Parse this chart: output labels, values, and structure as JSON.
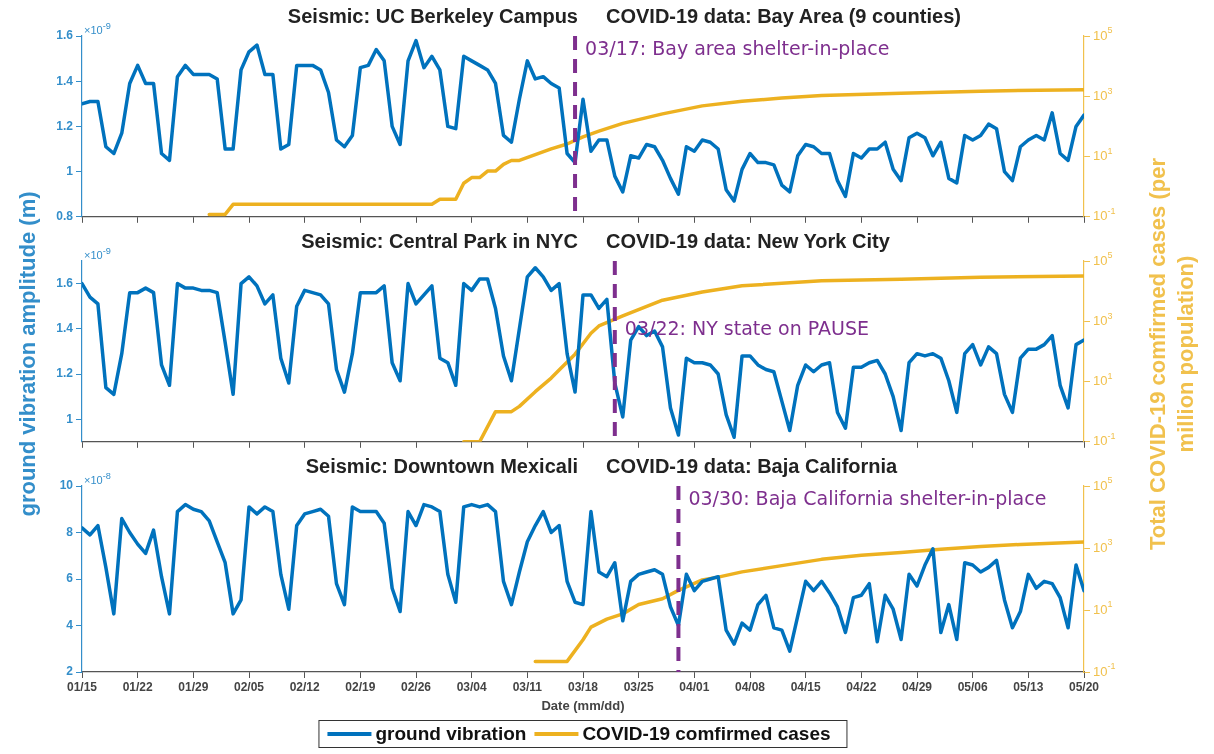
{
  "chart_data": [
    {
      "type": "line",
      "title": "Seismic: UC Berkeley Campus",
      "subtitle": "COVID-19 data: Bay Area (9 counties)",
      "annotations": [
        "×10$^{-9}$"
      ],
      "tick_labels": "y",
      "log": "y2",
      "x": [
        "--01-15",
        "--01-16",
        "--01-17",
        "--01-18",
        "--01-19",
        "--01-20",
        "--01-21",
        "--01-22",
        "--01-23",
        "--01-24",
        "--01-25",
        "--01-26",
        "--01-27",
        "--01-28",
        "--01-29",
        "--01-30",
        "--01-31",
        "--02-01",
        "--02-02",
        "--02-03",
        "--02-04",
        "--02-05",
        "--02-06",
        "--02-07",
        "--02-08",
        "--02-09",
        "--02-10",
        "--02-11",
        "--02-12",
        "--02-13",
        "--02-14",
        "--02-15",
        "--02-16",
        "--02-17",
        "--02-18",
        "--02-19",
        "--02-20",
        "--02-21",
        "--02-22",
        "--02-23",
        "--02-24",
        "--02-25",
        "--02-26",
        "--02-27",
        "--02-28",
        "--02-29",
        "--03-01",
        "--03-02",
        "--03-03",
        "--03-04",
        "--03-05",
        "--03-06",
        "--03-07",
        "--03-08",
        "--03-09",
        "--03-10",
        "--03-11",
        "--03-12",
        "--03-13",
        "--03-14",
        "--03-15",
        "--03-16",
        "--03-17",
        "--03-18",
        "--03-19",
        "--03-20",
        "--03-21",
        "--03-22",
        "--03-23",
        "--03-24",
        "--03-25",
        "--03-26",
        "--03-27",
        "--03-28",
        "--03-29",
        "--03-30",
        "--03-31",
        "--04-01",
        "--04-02",
        "--04-03",
        "--04-04",
        "--04-05",
        "--04-06",
        "--04-07",
        "--04-08",
        "--04-09",
        "--04-10",
        "--04-11",
        "--04-12",
        "--04-13",
        "--04-14",
        "--04-15",
        "--04-16",
        "--04-17",
        "--04-18",
        "--04-19",
        "--04-20",
        "--04-21",
        "--04-22",
        "--04-23",
        "--04-24",
        "--04-25",
        "--04-26",
        "--04-27",
        "--04-28",
        "--04-29",
        "--04-30",
        "--05-01",
        "--05-02",
        "--05-03",
        "--05-04",
        "--05-05",
        "--05-06",
        "--05-07",
        "--05-08",
        "--05-09",
        "--05-10",
        "--05-11",
        "--05-12",
        "--05-13",
        "--05-14",
        "--05-15",
        "--05-16",
        "--05-17",
        "--05-18",
        "--05-19",
        "--05-20"
      ],
      "xlim": [
        "--01-15",
        "--05-20"
      ],
      "xticks": [
        {
          "value": "--01-15",
          "label": null
        },
        {
          "value": "--01-22",
          "label": null
        },
        {
          "value": "--01-29",
          "label": null
        },
        {
          "value": "--02-05",
          "label": null
        },
        {
          "value": "--02-12",
          "label": null
        },
        {
          "value": "--02-19",
          "label": null
        },
        {
          "value": "--02-26",
          "label": null
        },
        {
          "value": "--03-04",
          "label": null
        },
        {
          "value": "--03-11",
          "label": null
        },
        {
          "value": "--03-18",
          "label": null
        },
        {
          "value": "--03-25",
          "label": null
        },
        {
          "value": "--04-01",
          "label": null
        },
        {
          "value": "--04-08",
          "label": null
        },
        {
          "value": "--04-15",
          "label": null
        },
        {
          "value": "--04-22",
          "label": null
        },
        {
          "value": "--04-29",
          "label": null
        },
        {
          "value": "--05-06",
          "label": null
        },
        {
          "value": "--05-13",
          "label": null
        },
        {
          "value": "--05-20",
          "label": null
        }
      ],
      "ylim": [
        0.8,
        1.6
      ],
      "yticks": [
        0.8,
        1,
        1.2,
        1.4,
        1.6
      ],
      "y2lim": [
        0.1,
        100000
      ],
      "y2ticks": [
        {
          "value": 0.1,
          "label": "10$^{-1}$"
        },
        {
          "value": 10,
          "label": "10$^{1}$"
        },
        {
          "value": 1000,
          "label": "10$^{3}$"
        },
        {
          "value": 100000,
          "label": "10$^{5}$"
        }
      ],
      "ref_lines": [
        {
          "axis": "x",
          "value": "--03-17",
          "label": "03/17: Bay area shelter-in-place",
          "color": "#7e2f8e",
          "line_style": "dashed"
        }
      ],
      "series": [
        {
          "color": "#0072bd",
          "values": [
            1.3,
            1.31,
            1.31,
            1.11,
            1.08,
            1.17,
            1.39,
            1.47,
            1.39,
            1.39,
            1.08,
            1.05,
            1.42,
            1.47,
            1.43,
            1.43,
            1.43,
            1.41,
            1.1,
            1.1,
            1.45,
            1.53,
            1.56,
            1.43,
            1.43,
            1.1,
            1.12,
            1.47,
            1.47,
            1.47,
            1.45,
            1.35,
            1.14,
            1.11,
            1.16,
            1.46,
            1.47,
            1.54,
            1.49,
            1.2,
            1.12,
            1.49,
            1.58,
            1.46,
            1.51,
            1.45,
            1.2,
            1.19,
            1.51,
            1.49,
            1.47,
            1.45,
            1.39,
            1.16,
            1.13,
            1.32,
            1.49,
            1.41,
            1.42,
            1.39,
            1.37,
            1.08,
            1.04,
            1.32,
            1.09,
            1.14,
            1.14,
            0.98,
            0.91,
            1.07,
            1.06,
            1.12,
            1.11,
            1.05,
            0.97,
            0.9,
            1.11,
            1.09,
            1.14,
            1.13,
            1.1,
            0.92,
            0.87,
            1.01,
            1.08,
            1.04,
            1.04,
            1.03,
            0.94,
            0.91,
            1.07,
            1.12,
            1.11,
            1.08,
            1.08,
            0.96,
            0.89,
            1.08,
            1.06,
            1.1,
            1.1,
            1.13,
            1.01,
            0.96,
            1.15,
            1.17,
            1.15,
            1.07,
            1.13,
            0.97,
            0.95,
            1.16,
            1.14,
            1.16,
            1.21,
            1.19,
            1.0,
            0.96,
            1.11,
            1.14,
            1.16,
            1.14,
            1.26,
            1.08,
            1.05,
            1.2,
            1.25
          ]
        },
        {
          "color": "#edb120",
          "axis": "y2",
          "x": [
            "--01-31",
            "--02-02",
            "--02-03",
            "--02-28",
            "--02-29",
            "--03-02",
            "--03-03",
            "--03-04",
            "--03-05",
            "--03-06",
            "--03-07",
            "--03-08",
            "--03-09",
            "--03-10",
            "--03-12",
            "--03-14",
            "--03-16",
            "--03-18",
            "--03-20",
            "--03-23",
            "--03-28",
            "--04-02",
            "--04-07",
            "--04-12",
            "--04-17",
            "--04-27",
            "--05-07",
            "--05-20"
          ],
          "values": [
            0.12,
            0.12,
            0.26,
            0.26,
            0.38,
            0.38,
            1.3,
            2,
            2,
            3.3,
            3.3,
            5.5,
            7.4,
            7.4,
            11.5,
            18,
            26,
            45,
            70,
            126,
            260,
            480,
            680,
            870,
            1070,
            1260,
            1480,
            1660
          ]
        }
      ]
    },
    {
      "type": "line",
      "title": "Seismic: Central Park in NYC",
      "subtitle": "COVID-19 data: New York City",
      "annotations": [
        "×10$^{-9}$"
      ],
      "tick_labels": "y",
      "log": "y2",
      "ylabel": "ground vibration amplitude (m)",
      "y2label": "Total COVID-19 comfirmed cases (per million population)",
      "x": [
        "--01-15",
        "--01-16",
        "--01-17",
        "--01-18",
        "--01-19",
        "--01-20",
        "--01-21",
        "--01-22",
        "--01-23",
        "--01-24",
        "--01-25",
        "--01-26",
        "--01-27",
        "--01-28",
        "--01-29",
        "--01-30",
        "--01-31",
        "--02-01",
        "--02-02",
        "--02-03",
        "--02-04",
        "--02-05",
        "--02-06",
        "--02-07",
        "--02-08",
        "--02-09",
        "--02-10",
        "--02-11",
        "--02-12",
        "--02-13",
        "--02-14",
        "--02-15",
        "--02-16",
        "--02-17",
        "--02-18",
        "--02-19",
        "--02-20",
        "--02-21",
        "--02-22",
        "--02-23",
        "--02-24",
        "--02-25",
        "--02-26",
        "--02-27",
        "--02-28",
        "--02-29",
        "--03-01",
        "--03-02",
        "--03-03",
        "--03-04",
        "--03-05",
        "--03-06",
        "--03-07",
        "--03-08",
        "--03-09",
        "--03-10",
        "--03-11",
        "--03-12",
        "--03-13",
        "--03-14",
        "--03-15",
        "--03-16",
        "--03-17",
        "--03-18",
        "--03-19",
        "--03-20",
        "--03-21",
        "--03-22",
        "--03-23",
        "--03-24",
        "--03-25",
        "--03-26",
        "--03-27",
        "--03-28",
        "--03-29",
        "--03-30",
        "--03-31",
        "--04-01",
        "--04-02",
        "--04-03",
        "--04-04",
        "--04-05",
        "--04-06",
        "--04-07",
        "--04-08",
        "--04-09",
        "--04-10",
        "--04-11",
        "--04-12",
        "--04-13",
        "--04-14",
        "--04-15",
        "--04-16",
        "--04-17",
        "--04-18",
        "--04-19",
        "--04-20",
        "--04-21",
        "--04-22",
        "--04-23",
        "--04-24",
        "--04-25",
        "--04-26",
        "--04-27",
        "--04-28",
        "--04-29",
        "--04-30",
        "--05-01",
        "--05-02",
        "--05-03",
        "--05-04",
        "--05-05",
        "--05-06",
        "--05-07",
        "--05-08",
        "--05-09",
        "--05-10",
        "--05-11",
        "--05-12",
        "--05-13",
        "--05-14",
        "--05-15",
        "--05-16",
        "--05-17",
        "--05-18",
        "--05-19",
        "--05-20"
      ],
      "xlim": [
        "--01-15",
        "--05-20"
      ],
      "xticks": [
        {
          "value": "--01-15",
          "label": null
        },
        {
          "value": "--01-22",
          "label": null
        },
        {
          "value": "--01-29",
          "label": null
        },
        {
          "value": "--02-05",
          "label": null
        },
        {
          "value": "--02-12",
          "label": null
        },
        {
          "value": "--02-19",
          "label": null
        },
        {
          "value": "--02-26",
          "label": null
        },
        {
          "value": "--03-04",
          "label": null
        },
        {
          "value": "--03-11",
          "label": null
        },
        {
          "value": "--03-18",
          "label": null
        },
        {
          "value": "--03-25",
          "label": null
        },
        {
          "value": "--04-01",
          "label": null
        },
        {
          "value": "--04-08",
          "label": null
        },
        {
          "value": "--04-15",
          "label": null
        },
        {
          "value": "--04-22",
          "label": null
        },
        {
          "value": "--04-29",
          "label": null
        },
        {
          "value": "--05-06",
          "label": null
        },
        {
          "value": "--05-13",
          "label": null
        },
        {
          "value": "--05-20",
          "label": null
        }
      ],
      "ylim": [
        0.9,
        1.7
      ],
      "yticks": [
        1,
        1.2,
        1.4,
        1.6
      ],
      "y2lim": [
        0.1,
        100000
      ],
      "y2ticks": [
        {
          "value": 0.1,
          "label": "10$^{-1}$"
        },
        {
          "value": 10,
          "label": "10$^{1}$"
        },
        {
          "value": 1000,
          "label": "10$^{3}$"
        },
        {
          "value": 100000,
          "label": "10$^{5}$"
        }
      ],
      "ref_lines": [
        {
          "axis": "x",
          "value": "--03-22",
          "label": "03/22: NY state on PAUSE",
          "color": "#7e2f8e",
          "line_style": "dashed"
        }
      ],
      "series": [
        {
          "color": "#0072bd",
          "values": [
            1.6,
            1.54,
            1.51,
            1.14,
            1.11,
            1.29,
            1.56,
            1.56,
            1.58,
            1.56,
            1.24,
            1.15,
            1.6,
            1.58,
            1.58,
            1.57,
            1.57,
            1.56,
            1.34,
            1.11,
            1.6,
            1.63,
            1.59,
            1.51,
            1.55,
            1.27,
            1.16,
            1.5,
            1.57,
            1.56,
            1.55,
            1.51,
            1.22,
            1.12,
            1.29,
            1.56,
            1.56,
            1.56,
            1.59,
            1.25,
            1.17,
            1.6,
            1.51,
            1.55,
            1.59,
            1.27,
            1.25,
            1.15,
            1.6,
            1.57,
            1.62,
            1.62,
            1.49,
            1.28,
            1.17,
            1.4,
            1.63,
            1.67,
            1.63,
            1.57,
            1.6,
            1.29,
            1.12,
            1.55,
            1.55,
            1.49,
            1.53,
            1.16,
            1.01,
            1.35,
            1.41,
            1.37,
            1.39,
            1.32,
            1.05,
            0.93,
            1.27,
            1.25,
            1.25,
            1.24,
            1.2,
            1.02,
            0.92,
            1.28,
            1.28,
            1.24,
            1.22,
            1.21,
            1.08,
            0.95,
            1.15,
            1.24,
            1.21,
            1.24,
            1.25,
            1.03,
            0.96,
            1.23,
            1.23,
            1.25,
            1.26,
            1.2,
            1.1,
            0.95,
            1.25,
            1.29,
            1.28,
            1.29,
            1.27,
            1.17,
            1.03,
            1.29,
            1.33,
            1.24,
            1.32,
            1.29,
            1.11,
            1.03,
            1.27,
            1.31,
            1.31,
            1.33,
            1.37,
            1.15,
            1.05,
            1.33,
            1.35
          ]
        },
        {
          "color": "#edb120",
          "axis": "y2",
          "x": [
            "--03-03",
            "--03-05",
            "--03-07",
            "--03-09",
            "--03-10",
            "--03-12",
            "--03-14",
            "--03-15",
            "--03-17",
            "--03-18",
            "--03-19",
            "--03-20",
            "--03-23",
            "--03-28",
            "--04-02",
            "--04-07",
            "--04-17",
            "--04-27",
            "--05-07",
            "--05-20"
          ],
          "values": [
            0.1,
            0.1,
            1,
            1,
            1.5,
            4.6,
            13,
            24,
            81,
            180,
            400,
            700,
            1500,
            5000,
            9300,
            15000,
            22000,
            25000,
            29000,
            32000
          ]
        }
      ]
    },
    {
      "type": "line",
      "title": "Seismic: Downtown Mexicali",
      "subtitle": "COVID-19 data: Baja California",
      "annotations": [
        "×10$^{-8}$"
      ],
      "log": "y2",
      "xlabel": "Date (mm/dd)",
      "legend": "bottom",
      "x": [
        "--01-15",
        "--01-16",
        "--01-17",
        "--01-18",
        "--01-19",
        "--01-20",
        "--01-21",
        "--01-22",
        "--01-23",
        "--01-24",
        "--01-25",
        "--01-26",
        "--01-27",
        "--01-28",
        "--01-29",
        "--01-30",
        "--01-31",
        "--02-01",
        "--02-02",
        "--02-03",
        "--02-04",
        "--02-05",
        "--02-06",
        "--02-07",
        "--02-08",
        "--02-09",
        "--02-10",
        "--02-11",
        "--02-12",
        "--02-13",
        "--02-14",
        "--02-15",
        "--02-16",
        "--02-17",
        "--02-18",
        "--02-19",
        "--02-20",
        "--02-21",
        "--02-22",
        "--02-23",
        "--02-24",
        "--02-25",
        "--02-26",
        "--02-27",
        "--02-28",
        "--02-29",
        "--03-01",
        "--03-02",
        "--03-03",
        "--03-04",
        "--03-05",
        "--03-06",
        "--03-07",
        "--03-08",
        "--03-09",
        "--03-10",
        "--03-11",
        "--03-12",
        "--03-13",
        "--03-14",
        "--03-15",
        "--03-16",
        "--03-17",
        "--03-18",
        "--03-19",
        "--03-20",
        "--03-21",
        "--03-22",
        "--03-23",
        "--03-24",
        "--03-25",
        "--03-26",
        "--03-27",
        "--03-28",
        "--03-29",
        "--03-30",
        "--03-31",
        "--04-01",
        "--04-02",
        "--04-03",
        "--04-04",
        "--04-05",
        "--04-06",
        "--04-07",
        "--04-08",
        "--04-09",
        "--04-10",
        "--04-11",
        "--04-12",
        "--04-13",
        "--04-14",
        "--04-15",
        "--04-16",
        "--04-17",
        "--04-18",
        "--04-19",
        "--04-20",
        "--04-21",
        "--04-22",
        "--04-23",
        "--04-24",
        "--04-25",
        "--04-26",
        "--04-27",
        "--04-28",
        "--04-29",
        "--04-30",
        "--05-01",
        "--05-02",
        "--05-03",
        "--05-04",
        "--05-05",
        "--05-06",
        "--05-07",
        "--05-08",
        "--05-09",
        "--05-10",
        "--05-11",
        "--05-12",
        "--05-13",
        "--05-14",
        "--05-15",
        "--05-16",
        "--05-17",
        "--05-18",
        "--05-19",
        "--05-20"
      ],
      "xlim": [
        "--01-15",
        "--05-20"
      ],
      "xticks": [
        {
          "value": "--01-15",
          "label": "01/15"
        },
        {
          "value": "--01-22",
          "label": "01/22"
        },
        {
          "value": "--01-29",
          "label": "01/29"
        },
        {
          "value": "--02-05",
          "label": "02/05"
        },
        {
          "value": "--02-12",
          "label": "02/12"
        },
        {
          "value": "--02-19",
          "label": "02/19"
        },
        {
          "value": "--02-26",
          "label": "02/26"
        },
        {
          "value": "--03-04",
          "label": "03/04"
        },
        {
          "value": "--03-11",
          "label": "03/11"
        },
        {
          "value": "--03-18",
          "label": "03/18"
        },
        {
          "value": "--03-25",
          "label": "03/25"
        },
        {
          "value": "--04-01",
          "label": "04/01"
        },
        {
          "value": "--04-08",
          "label": "04/08"
        },
        {
          "value": "--04-15",
          "label": "04/15"
        },
        {
          "value": "--04-22",
          "label": "04/22"
        },
        {
          "value": "--04-29",
          "label": "04/29"
        },
        {
          "value": "--05-06",
          "label": "05/06"
        },
        {
          "value": "--05-13",
          "label": "05/13"
        },
        {
          "value": "--05-20",
          "label": "05/20"
        }
      ],
      "ylim": [
        2,
        10
      ],
      "yticks": [
        2,
        4,
        6,
        8,
        10
      ],
      "y2lim": [
        0.1,
        100000
      ],
      "y2ticks": [
        {
          "value": 0.1,
          "label": "10$^{-1}$"
        },
        {
          "value": 10,
          "label": "10$^{1}$"
        },
        {
          "value": 1000,
          "label": "10$^{3}$"
        },
        {
          "value": 100000,
          "label": "10$^{5}$"
        }
      ],
      "ref_lines": [
        {
          "axis": "x",
          "value": "--03-30",
          "label": "03/30: Baja California shelter-in-place",
          "color": "#7e2f8e",
          "line_style": "dashed"
        }
      ],
      "series": [
        {
          "name": "ground vibration",
          "color": "#0072bd",
          "values": [
            8.2,
            7.9,
            8.3,
            6.5,
            4.5,
            8.6,
            8.0,
            7.5,
            7.1,
            8.1,
            6.1,
            4.5,
            8.9,
            9.2,
            9.0,
            8.9,
            8.5,
            7.6,
            6.7,
            4.5,
            5.1,
            9.1,
            8.8,
            9.1,
            8.9,
            6.2,
            4.7,
            8.3,
            8.8,
            8.9,
            9.0,
            8.7,
            5.8,
            4.9,
            9.1,
            8.9,
            8.9,
            8.9,
            8.4,
            5.6,
            4.6,
            8.9,
            8.3,
            9.2,
            9.1,
            8.9,
            6.2,
            5.0,
            9.1,
            9.2,
            9.1,
            9.2,
            8.9,
            5.9,
            4.9,
            6.3,
            7.6,
            8.3,
            8.9,
            8.0,
            8.3,
            5.9,
            5.0,
            4.9,
            8.9,
            6.3,
            6.1,
            6.7,
            4.2,
            5.9,
            6.2,
            6.3,
            6.4,
            6.2,
            4.8,
            4.0,
            6.2,
            5.5,
            5.9,
            6.0,
            6.1,
            3.8,
            3.2,
            4.1,
            3.8,
            4.9,
            5.3,
            3.9,
            3.8,
            2.9,
            4.4,
            5.9,
            5.5,
            5.9,
            5.4,
            4.8,
            3.7,
            5.2,
            5.3,
            5.8,
            3.3,
            5.3,
            4.7,
            3.4,
            6.2,
            5.7,
            6.6,
            7.3,
            3.7,
            4.9,
            3.4,
            6.7,
            6.6,
            6.3,
            6.5,
            6.8,
            5.1,
            3.9,
            4.6,
            6.2,
            5.6,
            5.9,
            5.8,
            5.2,
            3.9,
            6.6,
            5.5
          ]
        },
        {
          "name": "COVID-19 comfirmed cases",
          "color": "#edb120",
          "axis": "y2",
          "x": [
            "--03-12",
            "--03-16",
            "--03-18",
            "--03-19",
            "--03-21",
            "--03-23",
            "--03-25",
            "--03-28",
            "--03-30",
            "--04-02",
            "--04-04",
            "--04-07",
            "--04-12",
            "--04-17",
            "--04-22",
            "--04-27",
            "--05-02",
            "--05-07",
            "--05-12",
            "--05-20"
          ],
          "values": [
            0.22,
            0.22,
            1.1,
            2.8,
            5.1,
            7.5,
            15,
            23,
            43,
            93,
            115,
            170,
            270,
            430,
            580,
            710,
            910,
            1120,
            1300,
            1550
          ]
        }
      ]
    }
  ]
}
